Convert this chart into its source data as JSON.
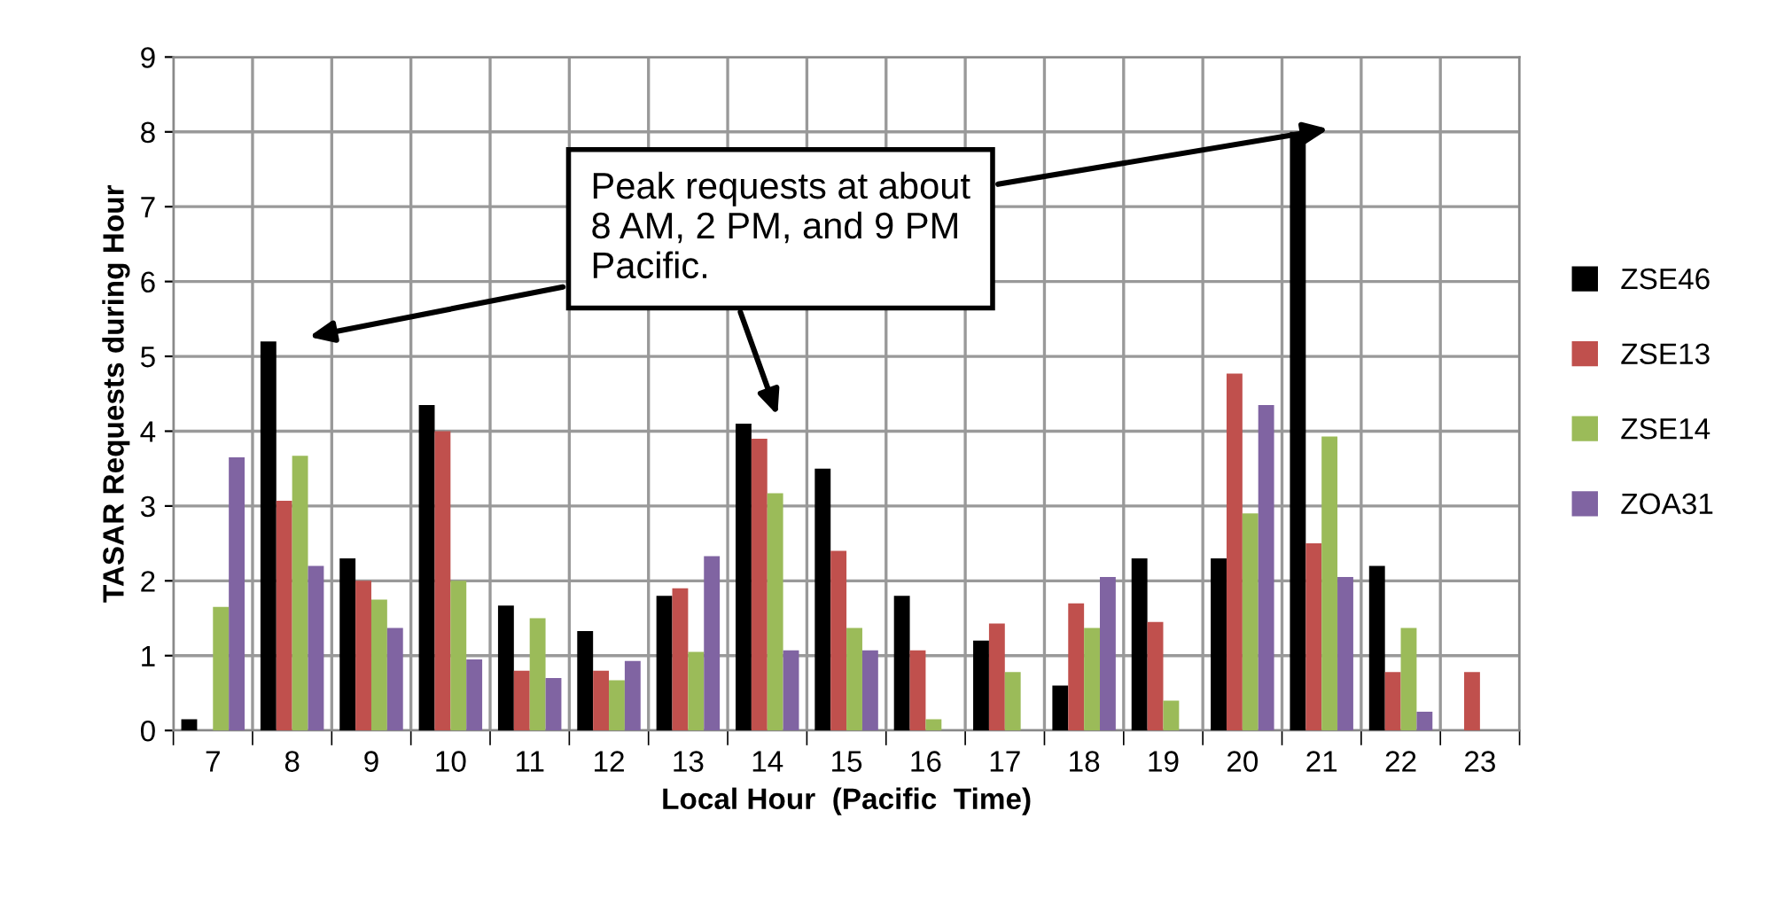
{
  "chart_data": {
    "type": "bar",
    "xlabel": "Local Hour  (Pacific  Time)",
    "ylabel": "TASAR Requests during Hour",
    "categories": [
      "7",
      "8",
      "9",
      "10",
      "11",
      "12",
      "13",
      "14",
      "15",
      "16",
      "17",
      "18",
      "19",
      "20",
      "21",
      "22",
      "23"
    ],
    "series": [
      {
        "name": "ZSE46",
        "color": "#000000",
        "values": [
          0.15,
          5.2,
          2.3,
          4.35,
          1.67,
          1.33,
          1.8,
          4.1,
          3.5,
          1.8,
          1.2,
          0.6,
          2.3,
          2.3,
          8.0,
          2.2,
          null
        ]
      },
      {
        "name": "ZSE13",
        "color": "#c0504d",
        "values": [
          null,
          3.07,
          2.0,
          4.0,
          0.8,
          0.8,
          1.9,
          3.9,
          2.4,
          1.07,
          1.43,
          1.7,
          1.45,
          4.77,
          2.5,
          0.78,
          0.78
        ]
      },
      {
        "name": "ZSE14",
        "color": "#9bbb59",
        "values": [
          1.65,
          3.67,
          1.75,
          2.0,
          1.5,
          0.67,
          1.05,
          3.17,
          1.37,
          0.15,
          0.78,
          1.37,
          0.4,
          2.9,
          3.93,
          1.37,
          null
        ]
      },
      {
        "name": "ZOA31",
        "color": "#8064a2",
        "values": [
          3.65,
          2.2,
          1.37,
          0.95,
          0.7,
          0.93,
          2.33,
          1.07,
          1.07,
          null,
          null,
          2.05,
          null,
          4.35,
          2.05,
          0.25,
          null
        ]
      }
    ],
    "ylim": [
      0,
      9
    ],
    "yticks": [
      0,
      1,
      2,
      3,
      4,
      5,
      6,
      7,
      8,
      9
    ],
    "grid": true,
    "legend": "right",
    "annotations": [
      "Peak requests at about\n8 AM, 2 PM, and 9 PM\nPacific."
    ]
  }
}
